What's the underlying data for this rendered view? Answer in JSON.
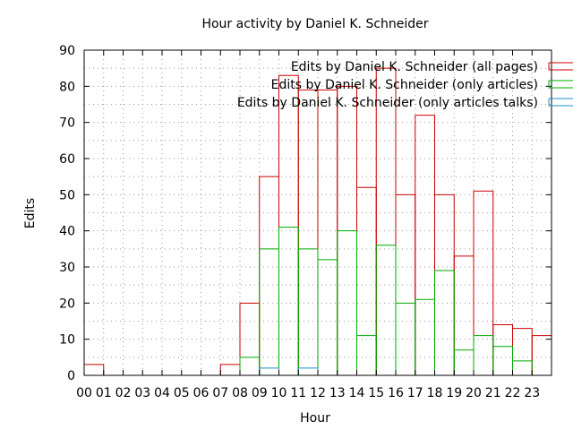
{
  "chart_data": {
    "type": "bar",
    "title": "Hour activity by Daniel K. Schneider",
    "xlabel": "Hour",
    "ylabel": "Edits",
    "ylim": [
      0,
      90
    ],
    "yticks": [
      "0",
      "10",
      "20",
      "30",
      "40",
      "50",
      "60",
      "70",
      "80",
      "90"
    ],
    "categories": [
      "00",
      "01",
      "02",
      "03",
      "04",
      "05",
      "06",
      "07",
      "08",
      "09",
      "10",
      "11",
      "12",
      "13",
      "14",
      "15",
      "16",
      "17",
      "18",
      "19",
      "20",
      "21",
      "22",
      "23"
    ],
    "grid": true,
    "legend_position": "top-right",
    "series": [
      {
        "name": "Edits by Daniel K. Schneider (all pages)",
        "color": "#cc0000",
        "values": [
          3,
          0,
          0,
          0,
          0,
          0,
          0,
          3,
          20,
          55,
          83,
          79,
          79,
          80,
          52,
          85,
          50,
          72,
          50,
          33,
          51,
          14,
          13,
          11
        ]
      },
      {
        "name": "Edits by Daniel K. Schneider (only articles)",
        "color": "#00aa00",
        "values": [
          0,
          0,
          0,
          0,
          0,
          0,
          0,
          0,
          5,
          35,
          41,
          35,
          32,
          40,
          11,
          36,
          20,
          21,
          29,
          7,
          11,
          8,
          4,
          0
        ]
      },
      {
        "name": "Edits by Daniel K. Schneider (only articles talks)",
        "color": "#1e90c8",
        "values": [
          0,
          0,
          0,
          0,
          0,
          0,
          0,
          0,
          0,
          2,
          0,
          2,
          0,
          0,
          0,
          0,
          0,
          0,
          0,
          0,
          0,
          0,
          0,
          0
        ]
      }
    ]
  }
}
